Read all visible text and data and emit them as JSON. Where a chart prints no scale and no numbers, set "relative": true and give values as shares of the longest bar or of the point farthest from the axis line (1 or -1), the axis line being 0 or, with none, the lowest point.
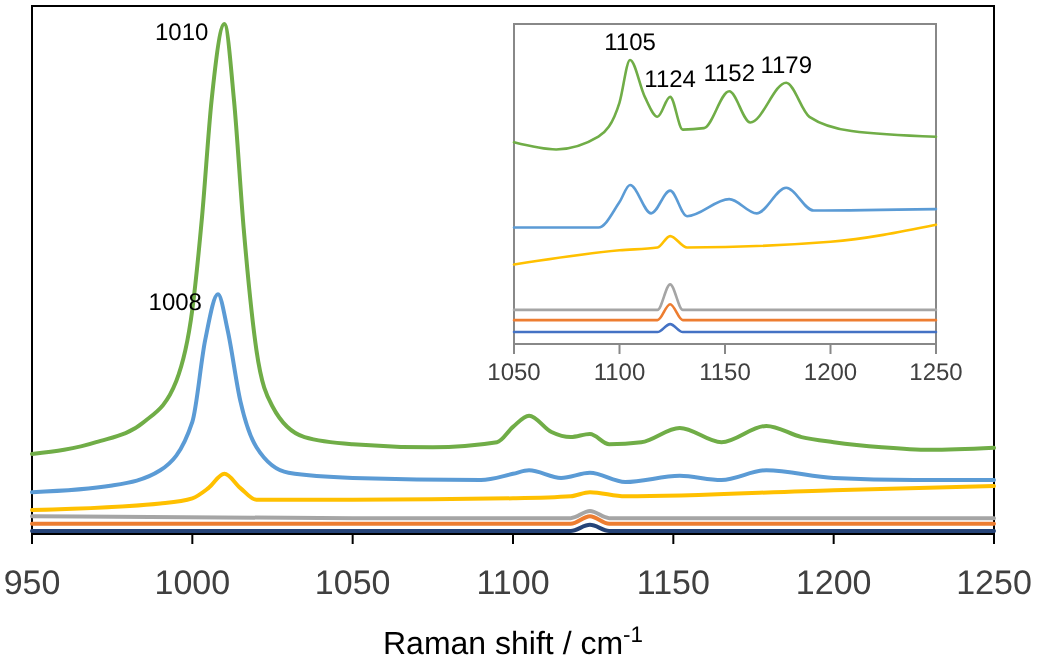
{
  "chart_data": [
    {
      "type": "line",
      "relative": true,
      "xlabel": "Raman shift / cm$^{-1}$",
      "xlim": [
        950,
        1250
      ],
      "xticks": [
        950,
        1000,
        1050,
        1100,
        1150,
        1200,
        1250
      ],
      "tick_labels": "x",
      "grid": false,
      "line_style": "solid",
      "annotations": [
        {
          "text": "1010",
          "x": 1010,
          "y": 1.0
        },
        {
          "text": "1008",
          "x": 1008,
          "y": 0.47
        }
      ],
      "series": [
        {
          "color": "#70ad47",
          "x": [
            950,
            970,
            985,
            995,
            1000,
            1003,
            1006,
            1010,
            1013,
            1016,
            1020,
            1025,
            1035,
            1050,
            1075,
            1095,
            1100,
            1105,
            1112,
            1118,
            1124,
            1130,
            1140,
            1152,
            1165,
            1179,
            1190,
            1200,
            1215,
            1230,
            1250
          ],
          "values": [
            0.157,
            0.18,
            0.22,
            0.3,
            0.44,
            0.62,
            0.85,
            1.0,
            0.85,
            0.6,
            0.36,
            0.25,
            0.19,
            0.176,
            0.17,
            0.18,
            0.21,
            0.232,
            0.2,
            0.19,
            0.196,
            0.176,
            0.18,
            0.208,
            0.18,
            0.212,
            0.19,
            0.18,
            0.17,
            0.165,
            0.169
          ]
        },
        {
          "color": "#5b9bd5",
          "x": [
            950,
            975,
            990,
            1000,
            1004,
            1008,
            1011,
            1015,
            1020,
            1030,
            1050,
            1090,
            1100,
            1105,
            1115,
            1124,
            1135,
            1152,
            1165,
            1179,
            1200,
            1225,
            1250
          ],
          "values": [
            0.082,
            0.095,
            0.125,
            0.22,
            0.38,
            0.47,
            0.4,
            0.26,
            0.17,
            0.12,
            0.11,
            0.106,
            0.118,
            0.125,
            0.11,
            0.12,
            0.102,
            0.114,
            0.106,
            0.125,
            0.11,
            0.106,
            0.106
          ]
        },
        {
          "color": "#ffc000",
          "x": [
            950,
            990,
            1000,
            1005,
            1010,
            1015,
            1020,
            1050,
            1100,
            1118,
            1124,
            1135,
            1200,
            1250
          ],
          "values": [
            0.047,
            0.06,
            0.07,
            0.09,
            0.118,
            0.09,
            0.067,
            0.067,
            0.07,
            0.074,
            0.082,
            0.074,
            0.086,
            0.094
          ]
        },
        {
          "color": "#a5a5a5",
          "x": [
            950,
            1050,
            1118,
            1124,
            1130,
            1250
          ],
          "values": [
            0.035,
            0.031,
            0.031,
            0.045,
            0.031,
            0.031
          ]
        },
        {
          "color": "#ed7d31",
          "x": [
            950,
            1118,
            1124,
            1130,
            1250
          ],
          "values": [
            0.02,
            0.02,
            0.035,
            0.02,
            0.02
          ]
        },
        {
          "color": "#264478",
          "x": [
            950,
            1118,
            1124,
            1130,
            1250
          ],
          "values": [
            0.006,
            0.006,
            0.018,
            0.006,
            0.006
          ]
        }
      ]
    },
    {
      "type": "line",
      "relative": true,
      "xlim": [
        1050,
        1250
      ],
      "xticks": [
        1050,
        1100,
        1150,
        1200,
        1250
      ],
      "tick_labels": "x",
      "grid": false,
      "line_style": "solid",
      "annotations": [
        {
          "text": "1105",
          "x": 1105,
          "y": 1.0
        },
        {
          "text": "1124",
          "x": 1124,
          "y": 0.87
        },
        {
          "text": "1152",
          "x": 1152,
          "y": 0.89
        },
        {
          "text": "1179",
          "x": 1179,
          "y": 0.92
        }
      ],
      "series": [
        {
          "color": "#70ad47",
          "x": [
            1050,
            1070,
            1090,
            1100,
            1105,
            1112,
            1118,
            1124,
            1130,
            1140,
            1152,
            1162,
            1179,
            1190,
            1210,
            1250
          ],
          "values": [
            0.71,
            0.685,
            0.73,
            0.85,
            1.0,
            0.87,
            0.8,
            0.87,
            0.755,
            0.76,
            0.89,
            0.78,
            0.92,
            0.8,
            0.75,
            0.73
          ]
        },
        {
          "color": "#5b9bd5",
          "x": [
            1050,
            1090,
            1100,
            1105,
            1115,
            1124,
            1132,
            1152,
            1165,
            1179,
            1192,
            1250
          ],
          "values": [
            0.41,
            0.41,
            0.5,
            0.56,
            0.46,
            0.54,
            0.45,
            0.51,
            0.46,
            0.55,
            0.47,
            0.475
          ]
        },
        {
          "color": "#ffc000",
          "x": [
            1050,
            1100,
            1118,
            1124,
            1132,
            1200,
            1250
          ],
          "values": [
            0.28,
            0.33,
            0.34,
            0.38,
            0.34,
            0.36,
            0.42
          ]
        },
        {
          "color": "#a5a5a5",
          "x": [
            1050,
            1118,
            1124,
            1130,
            1250
          ],
          "values": [
            0.12,
            0.12,
            0.21,
            0.12,
            0.12
          ]
        },
        {
          "color": "#ed7d31",
          "x": [
            1050,
            1118,
            1124,
            1130,
            1250
          ],
          "values": [
            0.084,
            0.084,
            0.14,
            0.084,
            0.084
          ]
        },
        {
          "color": "#4472c4",
          "x": [
            1050,
            1118,
            1124,
            1130,
            1250
          ],
          "values": [
            0.042,
            0.042,
            0.07,
            0.042,
            0.042
          ]
        }
      ]
    }
  ]
}
